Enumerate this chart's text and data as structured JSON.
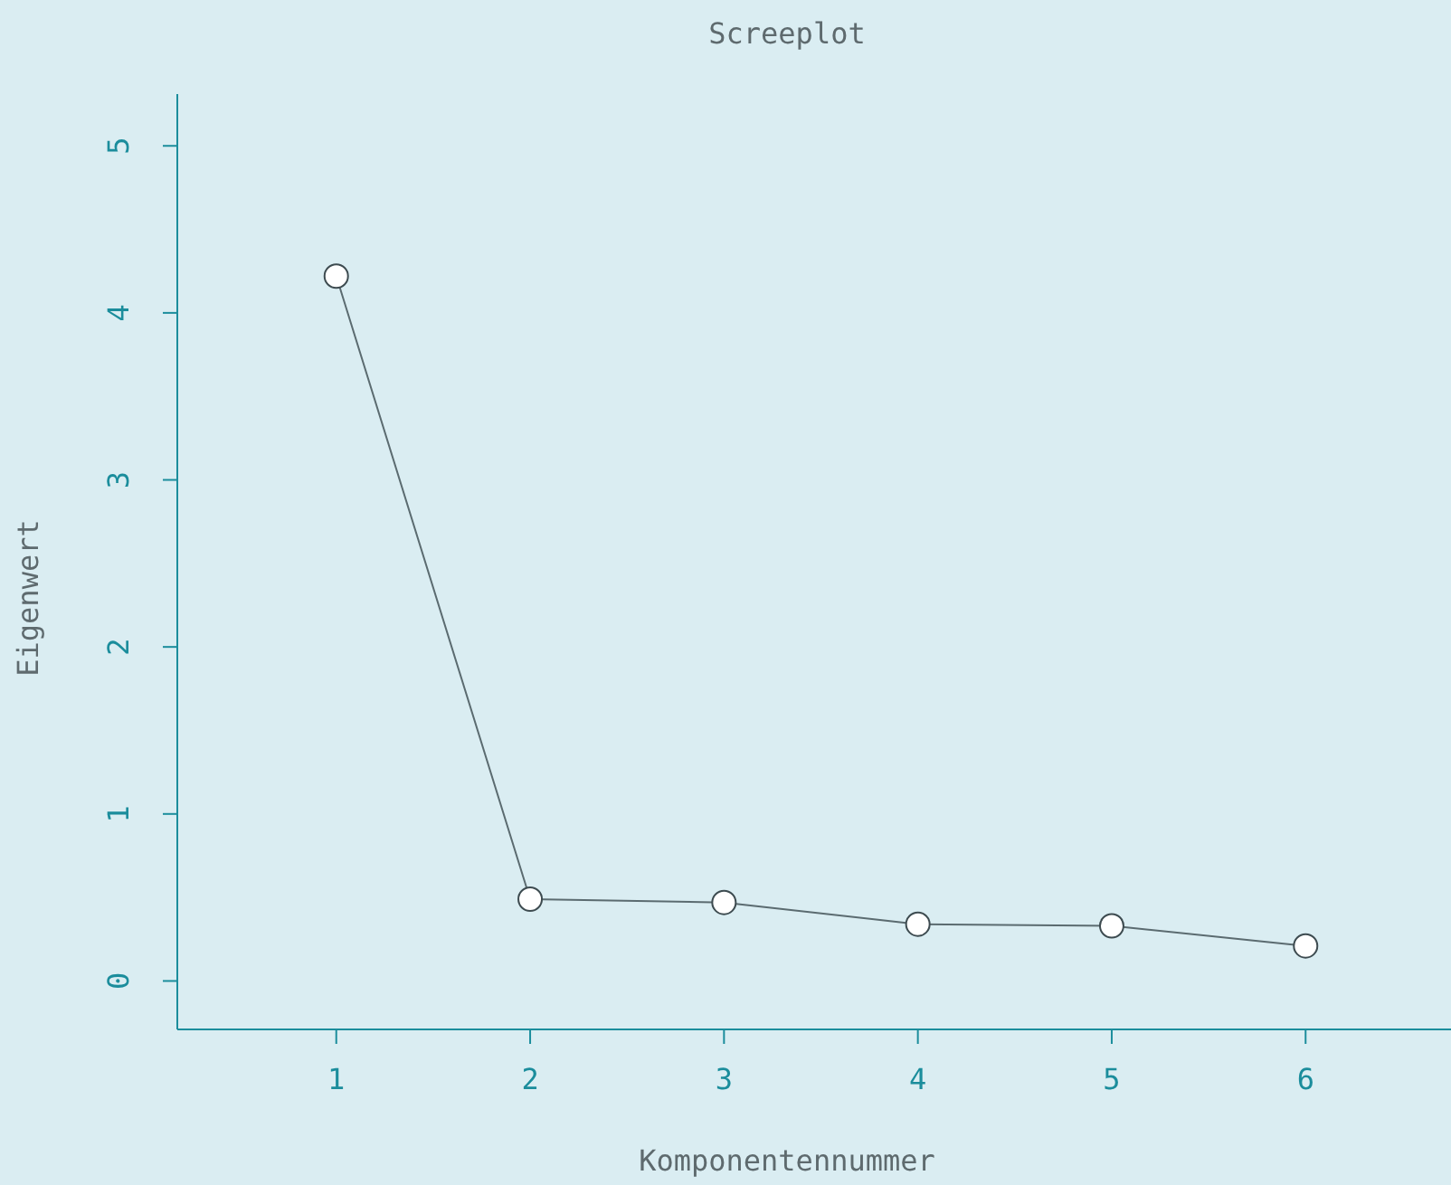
{
  "chart_data": {
    "type": "line",
    "title": "Screeplot",
    "xlabel": "Komponentennummer",
    "ylabel": "Eigenwert",
    "x": [
      1,
      2,
      3,
      4,
      5,
      6
    ],
    "series": [
      {
        "color": "#5b6b70",
        "values": [
          4.22,
          0.49,
          0.47,
          0.34,
          0.33,
          0.21
        ]
      }
    ],
    "xlim": [
      0.18,
      6.75
    ],
    "ylim": [
      -0.29,
      5.31
    ],
    "xticks": [
      1,
      2,
      3,
      4,
      5,
      6
    ],
    "yticks": [
      0,
      1,
      2,
      3,
      4,
      5
    ],
    "marker": "circle",
    "line_style": "solid"
  }
}
